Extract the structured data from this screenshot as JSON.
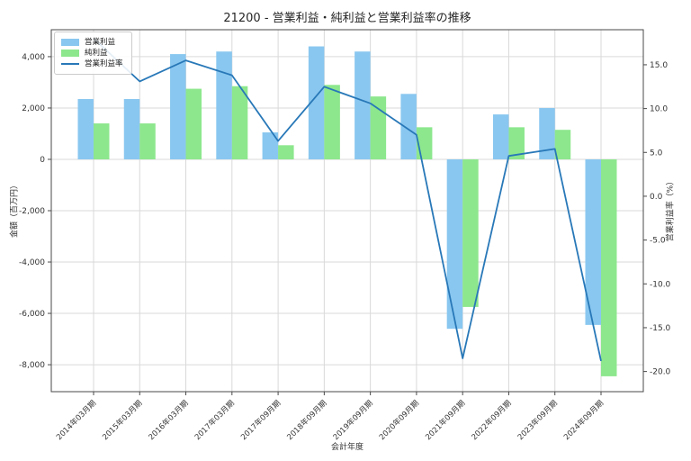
{
  "chart_data": {
    "type": "bar",
    "combo": "grouped bars (left axis) + line (right axis)",
    "title": "21200 - 営業利益・純利益と営業利益率の推移",
    "xlabel": "会計年度",
    "ylabel_left": "金額（百万円）",
    "ylabel_right": "営業利益率（%）",
    "categories": [
      "2014年03月期",
      "2015年03月期",
      "2016年03月期",
      "2017年03月期",
      "2017年09月期",
      "2018年09月期",
      "2019年09月期",
      "2020年09月期",
      "2021年09月期",
      "2022年09月期",
      "2023年09月期",
      "2024年09月期"
    ],
    "series": [
      {
        "name": "営業利益",
        "slug": "operating-profit",
        "type": "bar",
        "axis": "left",
        "color": "#89C7F0",
        "values": [
          2350,
          2350,
          4100,
          4200,
          1050,
          4400,
          4200,
          2550,
          -6600,
          1750,
          2000,
          -6450
        ]
      },
      {
        "name": "純利益",
        "slug": "net-profit",
        "type": "bar",
        "axis": "left",
        "color": "#8DE78D",
        "values": [
          1400,
          1400,
          2750,
          2850,
          550,
          2900,
          2450,
          1250,
          -5750,
          1250,
          1150,
          -8450
        ]
      },
      {
        "name": "営業利益率",
        "slug": "operating-margin",
        "type": "line",
        "axis": "right",
        "color": "#2878B8",
        "values": [
          18.0,
          13.1,
          15.5,
          13.8,
          6.3,
          12.5,
          10.6,
          7.0,
          -18.5,
          4.6,
          5.4,
          -18.8
        ]
      }
    ],
    "left_axis": {
      "ticks": [
        4000,
        2000,
        0,
        -2000,
        -4000,
        -6000,
        -8000
      ],
      "tick_labels": [
        "4,000",
        "2,000",
        "0",
        "-2,000",
        "-4,000",
        "-6,000",
        "-8,000"
      ],
      "range": [
        -9050,
        5050
      ]
    },
    "right_axis": {
      "ticks": [
        15,
        10,
        5,
        0,
        -5,
        -10,
        -15,
        -20
      ],
      "tick_labels": [
        "15.0",
        "10.0",
        "5.0",
        "0.0",
        "-5.0",
        "-10.0",
        "-15.0",
        "-20.0"
      ],
      "range": [
        -22.3,
        19.0
      ]
    },
    "grid": true,
    "legend_position": "upper-left"
  }
}
